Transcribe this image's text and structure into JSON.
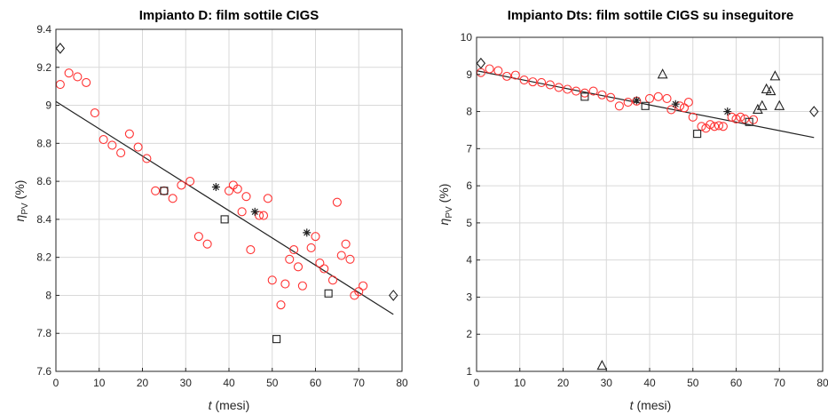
{
  "chart_data": [
    {
      "type": "scatter",
      "title": "Impianto D: film sottile CIGS",
      "xlabel_var": "t",
      "xlabel_unit": "(mesi)",
      "ylabel_sym": "η",
      "ylabel_sub": "PV",
      "ylabel_unit": "(%)",
      "xlim": [
        0,
        80
      ],
      "ylim": [
        7.6,
        9.4
      ],
      "xticks": [
        0,
        10,
        20,
        30,
        40,
        50,
        60,
        70,
        80
      ],
      "yticks": [
        7.6,
        7.8,
        8,
        8.2,
        8.4,
        8.6,
        8.8,
        9,
        9.2,
        9.4
      ],
      "xtick_labels": [
        "0",
        "10",
        "20",
        "30",
        "40",
        "50",
        "60",
        "70",
        "80"
      ],
      "ytick_labels": [
        "7.6",
        "7.8",
        "8",
        "8.2",
        "8.4",
        "8.6",
        "8.8",
        "9",
        "9.2",
        "9.4"
      ],
      "grid": true,
      "colors": {
        "circle": "#ff3333",
        "default": "#222222",
        "grid": "#d9d9d9"
      },
      "series": [
        {
          "marker": "circle",
          "points": [
            [
              1,
              9.11
            ],
            [
              3,
              9.17
            ],
            [
              5,
              9.15
            ],
            [
              7,
              9.12
            ],
            [
              9,
              8.96
            ],
            [
              11,
              8.82
            ],
            [
              13,
              8.79
            ],
            [
              15,
              8.75
            ],
            [
              17,
              8.85
            ],
            [
              19,
              8.78
            ],
            [
              21,
              8.72
            ],
            [
              23,
              8.55
            ],
            [
              25,
              8.55
            ],
            [
              27,
              8.51
            ],
            [
              29,
              8.58
            ],
            [
              31,
              8.6
            ],
            [
              33,
              8.31
            ],
            [
              35,
              8.27
            ],
            [
              40,
              8.55
            ],
            [
              41,
              8.58
            ],
            [
              42,
              8.56
            ],
            [
              43,
              8.44
            ],
            [
              44,
              8.52
            ],
            [
              45,
              8.24
            ],
            [
              47,
              8.42
            ],
            [
              48,
              8.42
            ],
            [
              49,
              8.51
            ],
            [
              50,
              8.08
            ],
            [
              52,
              7.95
            ],
            [
              53,
              8.06
            ],
            [
              54,
              8.19
            ],
            [
              55,
              8.24
            ],
            [
              56,
              8.15
            ],
            [
              57,
              8.05
            ],
            [
              59,
              8.25
            ],
            [
              60,
              8.31
            ],
            [
              61,
              8.17
            ],
            [
              62,
              8.14
            ],
            [
              64,
              8.08
            ],
            [
              65,
              8.49
            ],
            [
              66,
              8.21
            ],
            [
              67,
              8.27
            ],
            [
              68,
              8.19
            ],
            [
              69,
              8.0
            ],
            [
              70,
              8.02
            ],
            [
              71,
              8.05
            ]
          ]
        },
        {
          "marker": "star",
          "points": [
            [
              37,
              8.57
            ],
            [
              46,
              8.44
            ],
            [
              58,
              8.33
            ]
          ]
        },
        {
          "marker": "square",
          "points": [
            [
              25,
              8.55
            ],
            [
              39,
              8.4
            ],
            [
              51,
              7.77
            ],
            [
              63,
              8.01
            ]
          ]
        },
        {
          "marker": "diamond",
          "points": [
            [
              1,
              9.3
            ],
            [
              78,
              8.0
            ]
          ]
        }
      ],
      "trendline": [
        [
          0,
          9.02
        ],
        [
          78,
          7.9
        ]
      ]
    },
    {
      "type": "scatter",
      "title": "Impianto Dts: film sottile CIGS su inseguitore",
      "xlabel_var": "t",
      "xlabel_unit": "(mesi)",
      "ylabel_sym": "η",
      "ylabel_sub": "PV",
      "ylabel_unit": "(%)",
      "xlim": [
        0,
        80
      ],
      "ylim": [
        1,
        10
      ],
      "xticks": [
        0,
        10,
        20,
        30,
        40,
        50,
        60,
        70,
        80
      ],
      "yticks": [
        1,
        2,
        3,
        4,
        5,
        6,
        7,
        8,
        9,
        10
      ],
      "xtick_labels": [
        "0",
        "10",
        "20",
        "30",
        "40",
        "50",
        "60",
        "70",
        "80"
      ],
      "ytick_labels": [
        "1",
        "2",
        "3",
        "4",
        "5",
        "6",
        "7",
        "8",
        "9",
        "10"
      ],
      "grid": true,
      "colors": {
        "circle": "#ff3333",
        "default": "#222222",
        "grid": "#d9d9d9"
      },
      "series": [
        {
          "marker": "circle",
          "points": [
            [
              1,
              9.05
            ],
            [
              3,
              9.15
            ],
            [
              5,
              9.1
            ],
            [
              7,
              8.95
            ],
            [
              9,
              8.98
            ],
            [
              11,
              8.85
            ],
            [
              13,
              8.8
            ],
            [
              15,
              8.78
            ],
            [
              17,
              8.72
            ],
            [
              19,
              8.65
            ],
            [
              21,
              8.6
            ],
            [
              23,
              8.55
            ],
            [
              25,
              8.5
            ],
            [
              27,
              8.55
            ],
            [
              29,
              8.45
            ],
            [
              31,
              8.38
            ],
            [
              33,
              8.15
            ],
            [
              35,
              8.25
            ],
            [
              37,
              8.28
            ],
            [
              40,
              8.35
            ],
            [
              42,
              8.4
            ],
            [
              44,
              8.35
            ],
            [
              45,
              8.05
            ],
            [
              47,
              8.15
            ],
            [
              48,
              8.1
            ],
            [
              49,
              8.25
            ],
            [
              50,
              7.85
            ],
            [
              52,
              7.6
            ],
            [
              53,
              7.55
            ],
            [
              54,
              7.65
            ],
            [
              55,
              7.6
            ],
            [
              56,
              7.62
            ],
            [
              57,
              7.6
            ],
            [
              59,
              7.85
            ],
            [
              60,
              7.8
            ],
            [
              61,
              7.85
            ],
            [
              62,
              7.8
            ],
            [
              64,
              7.78
            ]
          ]
        },
        {
          "marker": "star",
          "points": [
            [
              37,
              8.3
            ],
            [
              46,
              8.2
            ],
            [
              58,
              8.0
            ]
          ]
        },
        {
          "marker": "square",
          "points": [
            [
              25,
              8.4
            ],
            [
              39,
              8.15
            ],
            [
              51,
              7.4
            ],
            [
              63,
              7.72
            ]
          ]
        },
        {
          "marker": "diamond",
          "points": [
            [
              1,
              9.3
            ],
            [
              78,
              8.0
            ]
          ]
        },
        {
          "marker": "triangle",
          "points": [
            [
              29,
              1.15
            ],
            [
              43,
              9.0
            ],
            [
              65,
              8.05
            ],
            [
              66,
              8.15
            ],
            [
              67,
              8.6
            ],
            [
              68,
              8.55
            ],
            [
              69,
              8.95
            ],
            [
              70,
              8.15
            ]
          ]
        }
      ],
      "trendline": [
        [
          0,
          9.1
        ],
        [
          78,
          7.3
        ]
      ]
    }
  ]
}
